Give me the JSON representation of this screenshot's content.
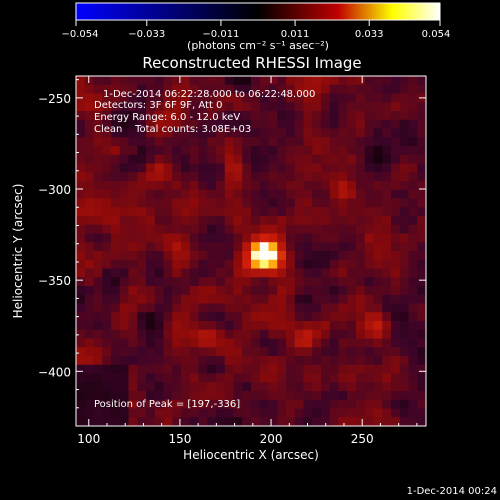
{
  "colorbar": {
    "tick_labels": [
      "-0.054",
      "-0.033",
      "-0.011",
      "0.011",
      "0.033",
      "0.054"
    ],
    "range": [
      -0.054,
      0.054
    ],
    "unit_label": "(photons cm⁻² s⁻¹ asec⁻²)",
    "colors": [
      "#0000ff",
      "#000000",
      "#c00000",
      "#ffff00",
      "#ffffff"
    ]
  },
  "chart_data": {
    "type": "heatmap",
    "title": "Reconstructed RHESSI Image",
    "xlabel": "Heliocentric X (arcsec)",
    "ylabel": "Heliocentric Y (arcsec)",
    "xlim": [
      93,
      285
    ],
    "ylim": [
      -430,
      -238
    ],
    "x_ticks": [
      100,
      150,
      200,
      250
    ],
    "y_ticks": [
      -250,
      -300,
      -350,
      -400
    ],
    "peak": {
      "x": 197,
      "y": -336,
      "value": 0.054
    },
    "secondary_sources": [
      {
        "x": 163,
        "y": -380
      },
      {
        "x": 256,
        "y": -372
      },
      {
        "x": 218,
        "y": -382
      },
      {
        "x": 180,
        "y": -288
      },
      {
        "x": 138,
        "y": -290
      },
      {
        "x": 240,
        "y": -300
      }
    ],
    "annotations": [
      "1-Dec-2014 06:22:28.000 to 06:22:48.000",
      "Detectors: 3F 6F 9F, Att 0",
      "Energy Range: 6.0 - 12.0 keV",
      "Clean    Total counts: 3.08E+03"
    ],
    "peak_label": "Position of Peak = [197,-336]"
  },
  "footer": {
    "timestamp": "1-Dec-2014 00:24"
  }
}
